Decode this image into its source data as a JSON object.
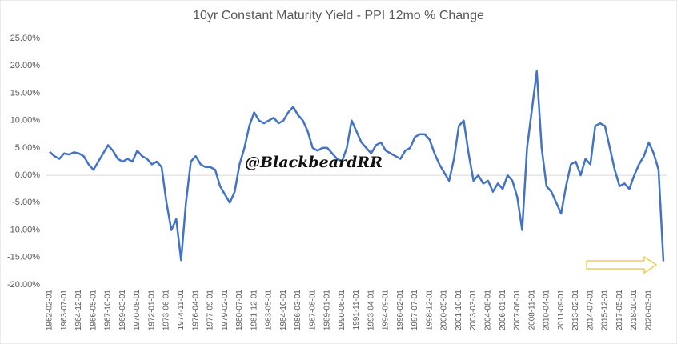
{
  "chart_data": {
    "type": "line",
    "title": "10yr Constant Maturity Yield - PPI 12mo % Change",
    "watermark": "@BlackbeardRR",
    "categories": [
      "1962-02-01",
      null,
      null,
      "1963-07-01",
      null,
      null,
      "1964-12-01",
      null,
      null,
      "1966-05-01",
      null,
      null,
      "1967-10-01",
      null,
      null,
      "1969-03-01",
      null,
      null,
      "1970-08-01",
      null,
      null,
      "1972-01-01",
      null,
      null,
      "1973-06-01",
      null,
      null,
      "1974-11-01",
      null,
      null,
      "1976-04-01",
      null,
      null,
      "1977-09-01",
      null,
      null,
      "1979-02-01",
      null,
      null,
      "1980-07-01",
      null,
      null,
      "1981-12-01",
      null,
      null,
      "1983-05-01",
      null,
      null,
      "1984-10-01",
      null,
      null,
      "1986-03-01",
      null,
      null,
      "1987-08-01",
      null,
      null,
      "1989-01-01",
      null,
      null,
      "1990-06-01",
      null,
      null,
      "1991-11-01",
      null,
      null,
      "1993-04-01",
      null,
      null,
      "1994-09-01",
      null,
      null,
      "1996-02-01",
      null,
      null,
      "1997-07-01",
      null,
      null,
      "1998-12-01",
      null,
      null,
      "2000-05-01",
      null,
      null,
      "2001-10-01",
      null,
      null,
      "2003-03-01",
      null,
      null,
      "2004-08-01",
      null,
      null,
      "2006-01-01",
      null,
      null,
      "2007-06-01",
      null,
      null,
      "2008-11-01",
      null,
      null,
      "2010-04-01",
      null,
      null,
      "2011-09-01",
      null,
      null,
      "2013-02-01",
      null,
      null,
      "2014-07-01",
      null,
      null,
      "2015-12-01",
      null,
      null,
      "2017-05-01",
      null,
      null,
      "2018-10-01",
      null,
      null,
      "2020-03-01",
      null,
      null,
      null
    ],
    "series": [
      {
        "name": "10yr Constant Maturity Yield - PPI 12mo % Change",
        "color": "#4472c4",
        "values": [
          4.3,
          3.5,
          3.0,
          4.0,
          3.8,
          4.2,
          4.0,
          3.5,
          2.0,
          1.0,
          2.5,
          4.0,
          5.5,
          4.5,
          3.0,
          2.5,
          3.0,
          2.5,
          4.5,
          3.5,
          3.0,
          2.0,
          2.5,
          1.5,
          -5,
          -10,
          -8,
          -15.5,
          -5,
          2.5,
          3.5,
          2,
          1.5,
          1.5,
          1.0,
          -2,
          -3.5,
          -5,
          -3,
          2,
          5,
          9,
          11.5,
          10,
          9.5,
          10,
          10.5,
          9.5,
          10,
          11.5,
          12.5,
          11,
          10,
          8,
          5,
          4.5,
          5,
          5,
          4,
          3,
          2.5,
          5,
          10,
          8,
          6,
          5,
          4,
          5.5,
          6,
          4.5,
          4,
          3.5,
          3,
          4.5,
          5,
          7,
          7.5,
          7.5,
          6.5,
          4,
          2,
          0.5,
          -1,
          3,
          9,
          10,
          4,
          -1,
          0,
          -1.5,
          -1,
          -3,
          -1.5,
          -2.5,
          0,
          -1,
          -4,
          -10,
          5,
          12,
          19,
          5,
          -2,
          -3,
          -5,
          -7,
          -2,
          2,
          2.5,
          0,
          3,
          2,
          9,
          9.5,
          9,
          5,
          1,
          -2,
          -1.5,
          -2.5,
          0,
          2,
          3.5,
          6,
          4,
          1,
          -15.7
        ]
      }
    ],
    "ylim": [
      -20,
      25
    ],
    "yticks": [
      {
        "value": -20,
        "label": "-20.00%"
      },
      {
        "value": -15,
        "label": "-15.00%"
      },
      {
        "value": -10,
        "label": "-10.00%"
      },
      {
        "value": -5,
        "label": "-5.00%"
      },
      {
        "value": 0,
        "label": "0.00%"
      },
      {
        "value": 5,
        "label": "5.00%"
      },
      {
        "value": 10,
        "label": "10.00%"
      },
      {
        "value": 15,
        "label": "15.00%"
      },
      {
        "value": 20,
        "label": "20.00%"
      },
      {
        "value": 25,
        "label": "25.00%"
      }
    ],
    "grid": false
  }
}
